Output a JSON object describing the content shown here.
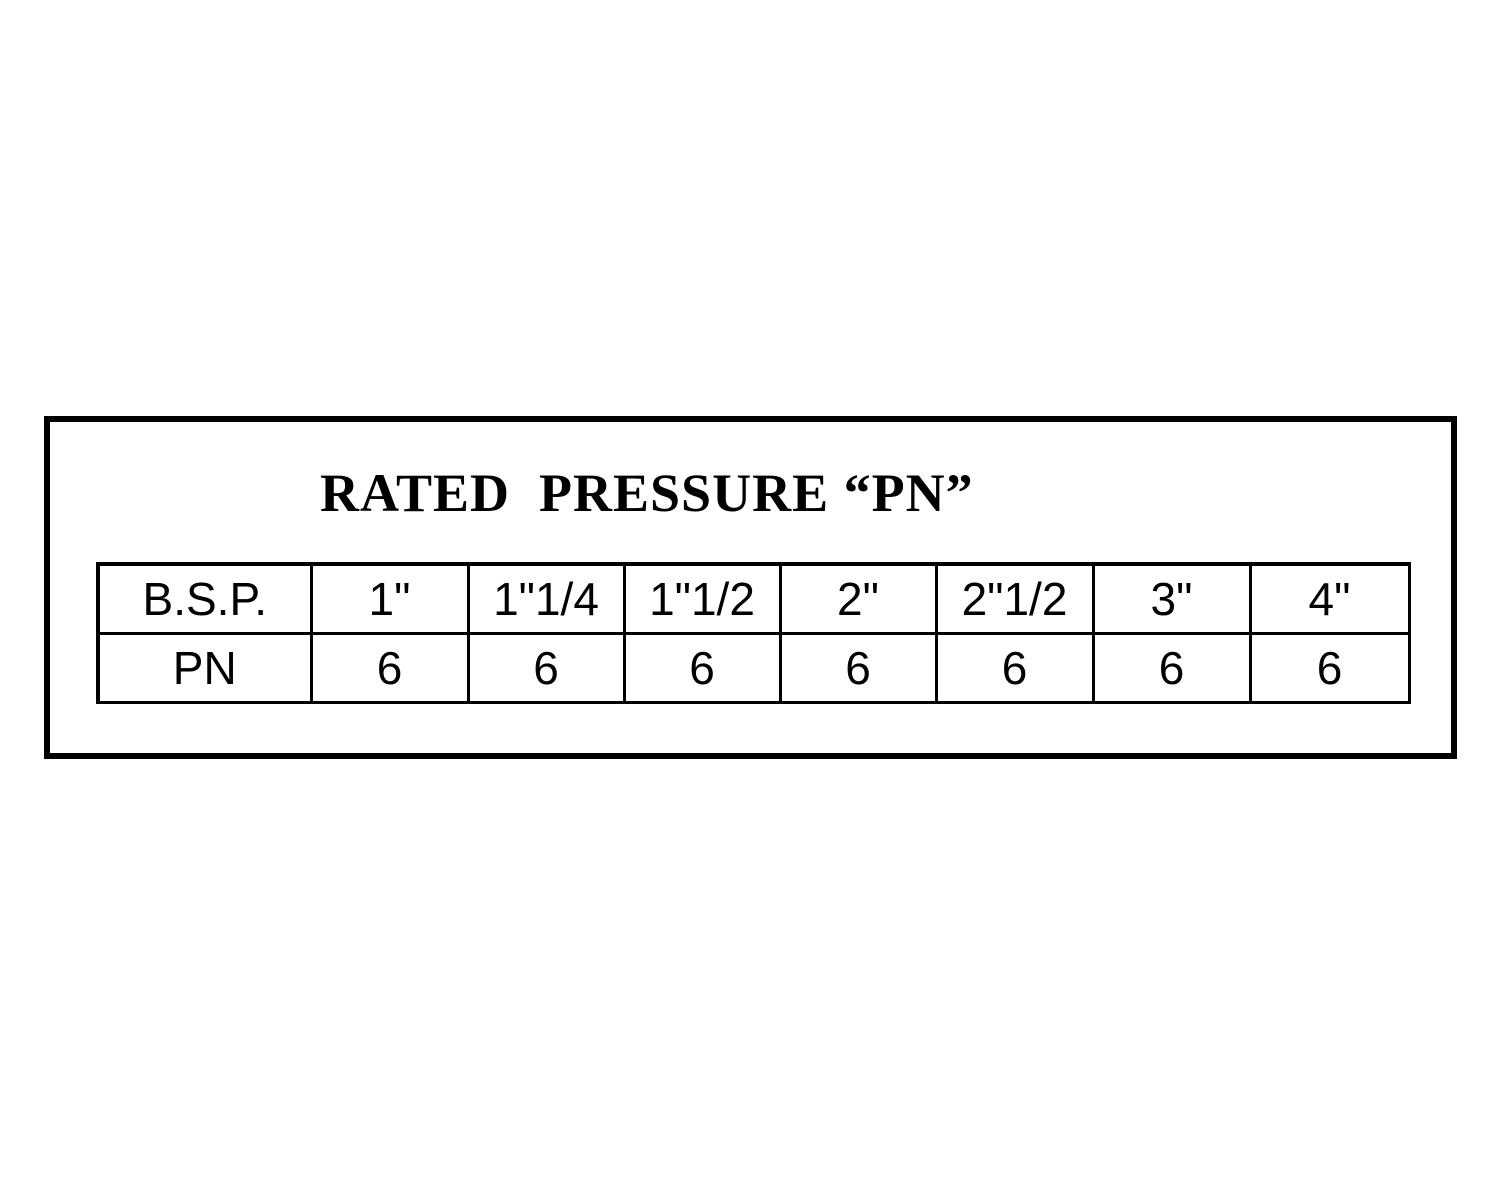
{
  "title": "RATED  PRESSURE “PN”",
  "table": {
    "row_headers": [
      "B.S.P.",
      "PN"
    ],
    "sizes": [
      "1\"",
      "1\"1/4",
      "1\"1/2",
      "2\"",
      "2\"1/2",
      "3\"",
      "4\""
    ],
    "pn": [
      "6",
      "6",
      "6",
      "6",
      "6",
      "6",
      "6"
    ]
  }
}
